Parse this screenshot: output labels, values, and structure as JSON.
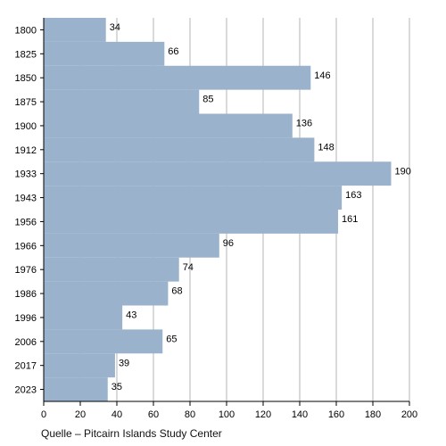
{
  "chart_data": {
    "type": "bar",
    "orientation": "horizontal",
    "categories": [
      "1800",
      "1825",
      "1850",
      "1875",
      "1900",
      "1912",
      "1933",
      "1943",
      "1956",
      "1966",
      "1976",
      "1986",
      "1996",
      "2006",
      "2017",
      "2023"
    ],
    "values": [
      34,
      66,
      146,
      85,
      136,
      148,
      190,
      163,
      161,
      96,
      74,
      68,
      43,
      65,
      39,
      35
    ],
    "xlim": [
      0,
      200
    ],
    "xticks": [
      0,
      20,
      40,
      60,
      80,
      100,
      120,
      140,
      160,
      180,
      200
    ],
    "grid": true,
    "bar_color": "#9ab2cb"
  },
  "source": "Quelle – Pitcairn Islands Study Center"
}
